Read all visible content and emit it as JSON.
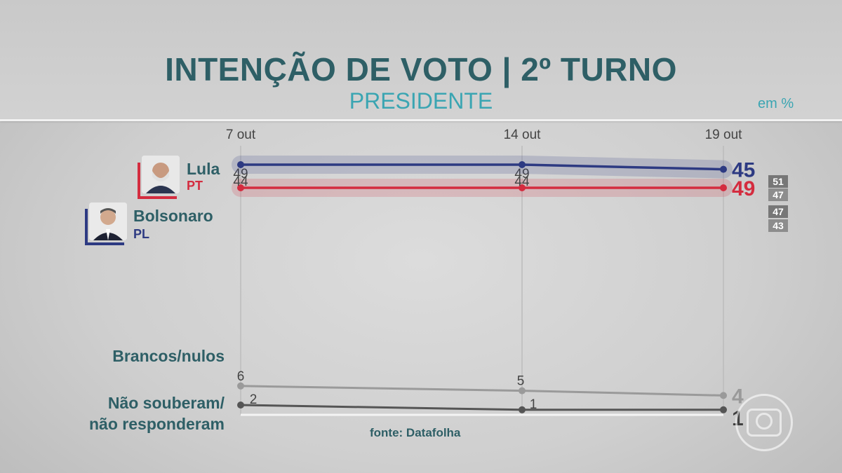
{
  "header": {
    "title": "INTENÇÃO DE VOTO | 2º TURNO",
    "subtitle": "PRESIDENTE",
    "unit": "em %"
  },
  "candidates": [
    {
      "name": "Lula",
      "party": "PT",
      "color": "#d42c3f",
      "range": [
        "51",
        "47"
      ]
    },
    {
      "name": "Bolsonaro",
      "party": "PL",
      "color": "#2d3a82",
      "range": [
        "47",
        "43"
      ]
    }
  ],
  "others_labels": {
    "blank": "Brancos/nulos",
    "unknown_line1": "Não souberam/",
    "unknown_line2": "não responderam"
  },
  "source": "fonte: Datafolha",
  "chart_data": {
    "type": "line",
    "categories": [
      "7 out",
      "14 out",
      "19 out"
    ],
    "series": [
      {
        "name": "Lula",
        "values": [
          49,
          49,
          49
        ],
        "color": "#d42c3f"
      },
      {
        "name": "Bolsonaro",
        "values": [
          44,
          44,
          45
        ],
        "color": "#2d3a82"
      },
      {
        "name": "Brancos/nulos",
        "values": [
          6,
          5,
          4
        ],
        "color": "#9a9a9a"
      },
      {
        "name": "Não souberam/não responderam",
        "values": [
          2,
          1,
          1
        ],
        "color": "#555555"
      }
    ],
    "unit": "em %"
  }
}
